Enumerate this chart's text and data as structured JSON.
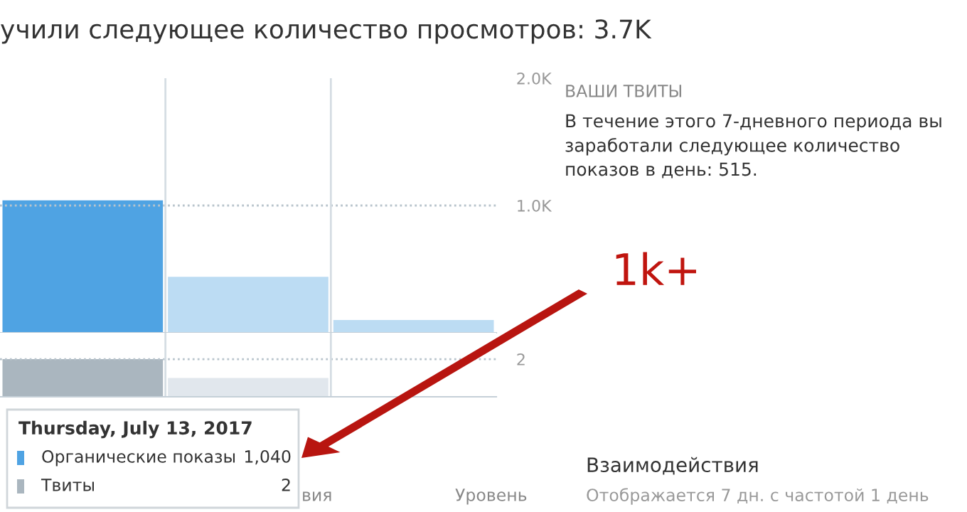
{
  "chart_data": [
    {
      "type": "bar",
      "title": "учили следующее количество просмотров: 3.7K",
      "categories": [
        null,
        null,
        null
      ],
      "series": [
        {
          "name": "Органические показы",
          "values": [
            1040,
            440,
            100
          ],
          "colors": [
            "#4fa3e3",
            "#bcdcf3",
            "#bcdcf3"
          ]
        }
      ],
      "ylim": [
        0,
        2000
      ],
      "yticks": [
        {
          "value": 1000,
          "label": "1.0K"
        },
        {
          "value": 2000,
          "label": "2.0K"
        }
      ],
      "ref_lines": [
        {
          "axis": "y",
          "value": 1000,
          "color": "#b8c4cc",
          "line_style": "dotted"
        }
      ],
      "tick_labels": "y",
      "legend": "bottom left",
      "annotations": [
        "ВАШИ ТВИТЫ",
        "В течение этого 7-дневного периода вы заработали следующее количество показов в день: 515.",
        "1k+",
        "Thursday, July 13, 2017",
        "1,040",
        "2",
        "вия",
        "Уровень",
        "Взаимодействия",
        "Отображается 7 дн. с частотой 1 день"
      ]
    },
    {
      "type": "bar",
      "categories": [
        null,
        null,
        null
      ],
      "series": [
        {
          "name": "Твиты",
          "values": [
            2,
            1,
            0
          ],
          "colors": [
            "#aab6bf",
            "#e1e7ed",
            "#e1e7ed"
          ]
        }
      ],
      "ylim": [
        0,
        3.4
      ],
      "yticks": [
        2
      ],
      "ref_lines": [
        {
          "axis": "y",
          "value": 2,
          "color": "#b8c4cc",
          "line_style": "dotted"
        }
      ],
      "tick_labels": "y",
      "legend": "bottom left"
    }
  ]
}
